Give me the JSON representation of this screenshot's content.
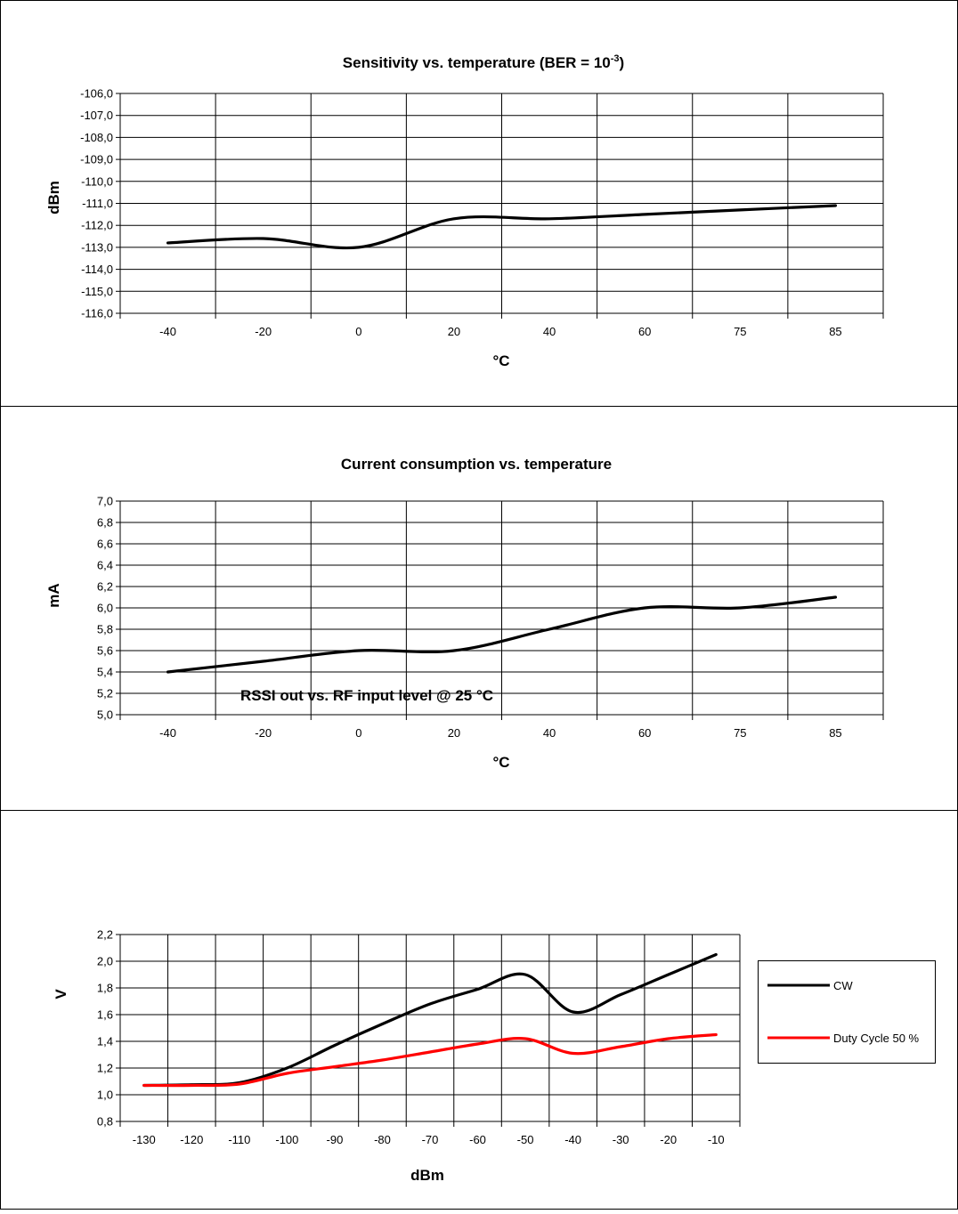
{
  "chart_data": [
    {
      "type": "line",
      "title": "Sensitivity vs. temperature (BER = 10",
      "title_sup": "-3",
      "title_end": ")",
      "xlabel": "°C",
      "ylabel": "dBm",
      "categories": [
        "-40",
        "-20",
        "0",
        "20",
        "40",
        "60",
        "75",
        "85"
      ],
      "yticks": [
        "-106,0",
        "-107,0",
        "-108,0",
        "-109,0",
        "-110,0",
        "-111,0",
        "-112,0",
        "-113,0",
        "-114,0",
        "-115,0",
        "-116,0"
      ],
      "ylim": [
        -116,
        -106
      ],
      "grid": true,
      "series": [
        {
          "values": [
            -112.8,
            -112.6,
            -113.0,
            -111.7,
            -111.7,
            -111.5,
            -111.3,
            -111.1
          ],
          "color": "#000000"
        }
      ]
    },
    {
      "type": "line",
      "title": "Current consumption vs. temperature",
      "xlabel": "°C",
      "ylabel": "mA",
      "categories": [
        "-40",
        "-20",
        "0",
        "20",
        "40",
        "60",
        "75",
        "85"
      ],
      "yticks": [
        "7,0",
        "6,8",
        "6,6",
        "6,4",
        "6,2",
        "6,0",
        "5,8",
        "5,6",
        "5,4",
        "5,2",
        "5,0"
      ],
      "ylim": [
        5.0,
        7.0
      ],
      "grid": true,
      "series": [
        {
          "values": [
            5.4,
            5.5,
            5.6,
            5.6,
            5.8,
            6.0,
            6.0,
            6.1
          ],
          "color": "#000000"
        }
      ]
    },
    {
      "type": "line",
      "title": "RSSI out vs. RF input level @ 25 °C",
      "xlabel": "dBm",
      "ylabel": "V",
      "categories": [
        "-130",
        "-120",
        "-110",
        "-100",
        "-90",
        "-80",
        "-70",
        "-60",
        "-50",
        "-40",
        "-30",
        "-20",
        "-10"
      ],
      "yticks": [
        "2,2",
        "2,0",
        "1,8",
        "1,6",
        "1,4",
        "1,2",
        "1,0",
        "0,8"
      ],
      "ylim": [
        0.8,
        2.2
      ],
      "grid": true,
      "legend_position": "right",
      "series": [
        {
          "name": "CW",
          "values": [
            1.07,
            1.075,
            1.09,
            1.2,
            1.37,
            1.53,
            1.68,
            1.79,
            1.9,
            1.62,
            1.75,
            1.9,
            2.05
          ],
          "color": "#000000"
        },
        {
          "name": "Duty Cycle 50 %",
          "values": [
            1.07,
            1.07,
            1.08,
            1.16,
            1.21,
            1.26,
            1.32,
            1.38,
            1.42,
            1.31,
            1.36,
            1.42,
            1.45
          ],
          "color": "#ff0000"
        }
      ]
    }
  ]
}
